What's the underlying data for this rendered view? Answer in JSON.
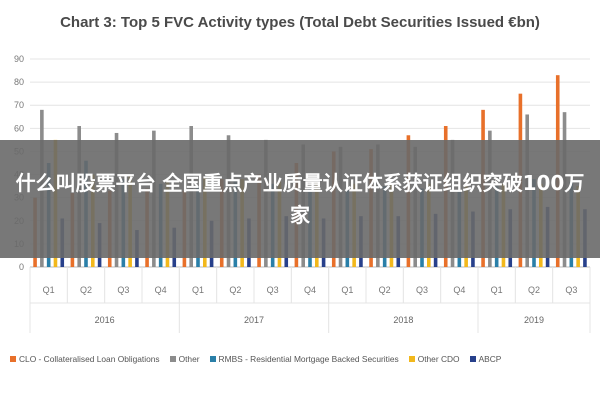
{
  "title": "Chart 3: Top 5 FVC Activity types (Total Debt Securities Issued €bn)",
  "overlay_text": "什么叫股票平台 全国重点产业质量认证体系获证组织突破100万家",
  "chart_data": {
    "type": "bar",
    "title": "Chart 3: Top 5 FVC Activity types (Total Debt Securities Issued €bn)",
    "xlabel": "",
    "ylabel": "",
    "ylim": [
      0,
      90
    ],
    "yticks": [
      0,
      10,
      20,
      30,
      40,
      50,
      60,
      70,
      80,
      90
    ],
    "grid": true,
    "legend_position": "bottom",
    "categories": [
      "Q1",
      "Q2",
      "Q3",
      "Q4",
      "Q1",
      "Q2",
      "Q3",
      "Q4",
      "Q1",
      "Q2",
      "Q3",
      "Q4",
      "Q1",
      "Q2",
      "Q3"
    ],
    "groups": [
      {
        "label": "2016",
        "count": 4
      },
      {
        "label": "2017",
        "count": 4
      },
      {
        "label": "2018",
        "count": 4
      },
      {
        "label": "2019",
        "count": 3
      }
    ],
    "series": [
      {
        "name": "CLO - Collateralised Loan Obligations",
        "color": "#e8702a",
        "values": [
          30,
          32,
          33,
          34,
          33,
          38,
          40,
          45,
          50,
          51,
          57,
          61,
          68,
          75,
          83
        ]
      },
      {
        "name": "Other",
        "color": "#8c8c8c",
        "values": [
          68,
          61,
          58,
          59,
          61,
          57,
          55,
          53,
          52,
          53,
          52,
          55,
          59,
          66,
          67
        ]
      },
      {
        "name": "RMBS - Residential Mortgage Backed Securities",
        "color": "#2a7fa8",
        "values": [
          45,
          46,
          38,
          36,
          35,
          37,
          36,
          35,
          34,
          35,
          34,
          33,
          35,
          38,
          37
        ]
      },
      {
        "name": "Other CDO",
        "color": "#f2b81c",
        "values": [
          55,
          40,
          40,
          38,
          39,
          38,
          37,
          37,
          36,
          36,
          36,
          36,
          36,
          36,
          35
        ]
      },
      {
        "name": "ABCP",
        "color": "#27408b",
        "values": [
          21,
          19,
          16,
          17,
          20,
          21,
          22,
          21,
          22,
          22,
          23,
          24,
          25,
          26,
          25
        ]
      }
    ]
  },
  "colors": {
    "grid": "#e4e4e4",
    "axis": "#bbbbbb",
    "overlay": "#696969"
  }
}
